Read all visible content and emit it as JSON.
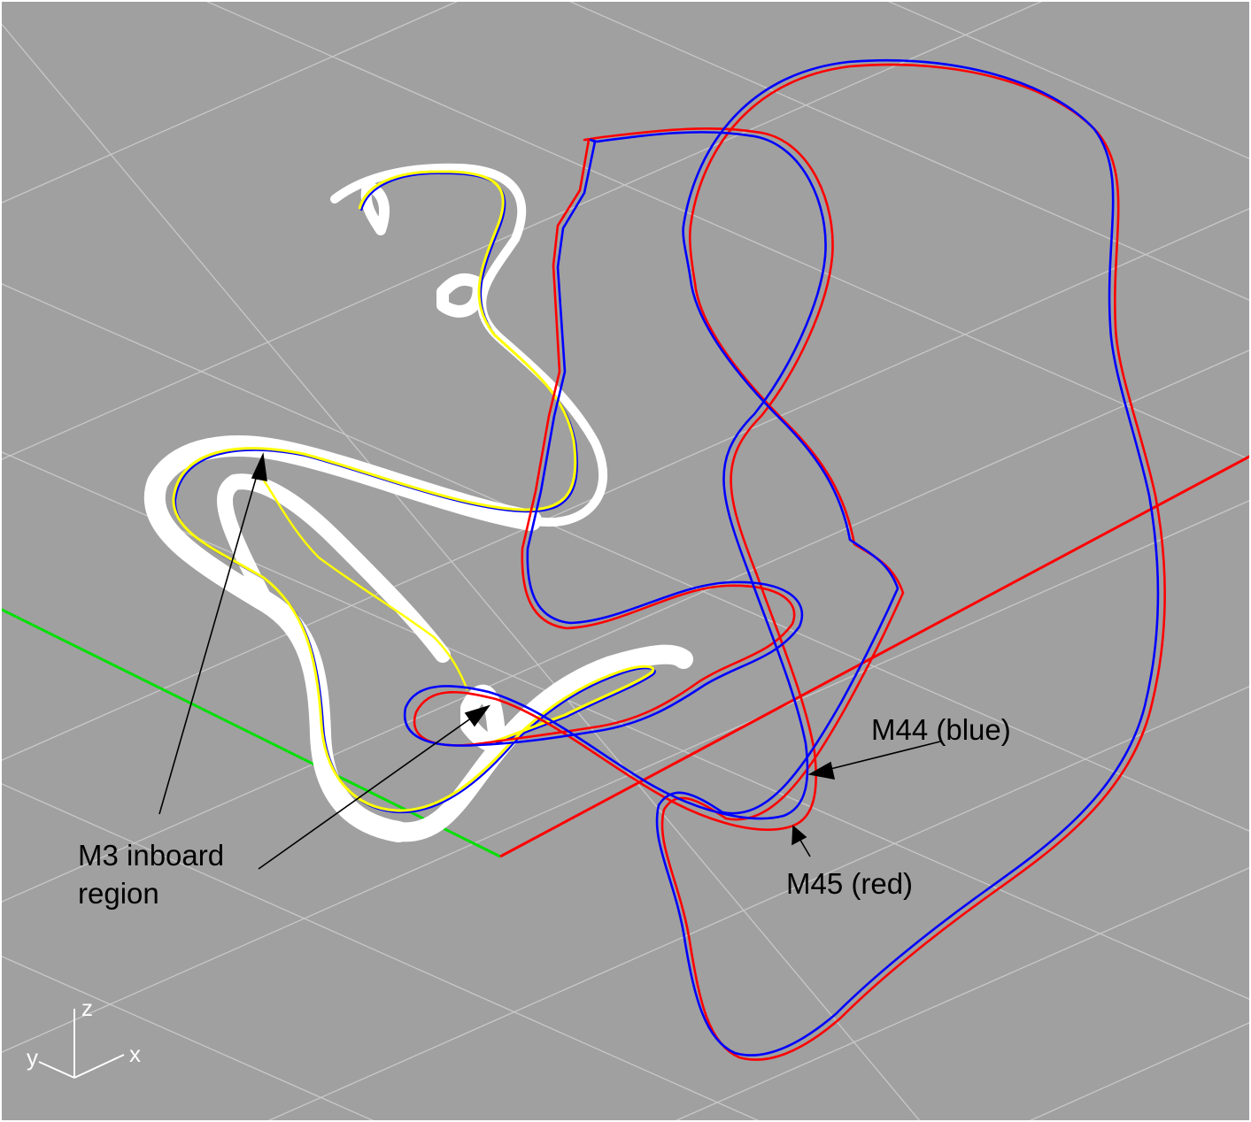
{
  "viewport": {
    "background_color": "#a0a0a0",
    "grid_color": "#c8c8c8"
  },
  "world_axes": {
    "x_axis_color": "#ff0000",
    "y_axis_color": "#00e000"
  },
  "curves": {
    "m3_band_color": "#ffffff",
    "m3_curve_color": "#ffff00",
    "m44_color": "#0000ff",
    "m45_color": "#ff0000"
  },
  "annotations": {
    "m3_line1": "M3 inboard",
    "m3_line2": "region",
    "m44": "M44 (blue)",
    "m45": "M45 (red)"
  },
  "axis_triad": {
    "x": "x",
    "y": "y",
    "z": "z",
    "color": "#ffffff"
  }
}
